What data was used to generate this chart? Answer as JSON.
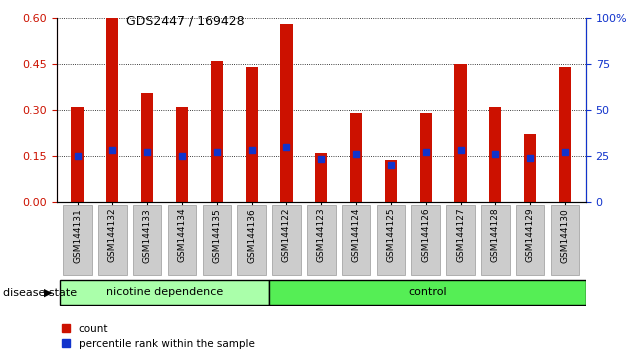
{
  "title": "GDS2447 / 169428",
  "samples": [
    "GSM144131",
    "GSM144132",
    "GSM144133",
    "GSM144134",
    "GSM144135",
    "GSM144136",
    "GSM144122",
    "GSM144123",
    "GSM144124",
    "GSM144125",
    "GSM144126",
    "GSM144127",
    "GSM144128",
    "GSM144129",
    "GSM144130"
  ],
  "count_values": [
    0.31,
    0.6,
    0.355,
    0.31,
    0.46,
    0.44,
    0.58,
    0.16,
    0.29,
    0.135,
    0.29,
    0.45,
    0.31,
    0.22,
    0.44
  ],
  "percentile_values": [
    25,
    28,
    27,
    25,
    27,
    28,
    30,
    23,
    26,
    20,
    27,
    28,
    26,
    24,
    27
  ],
  "bar_color": "#cc1100",
  "marker_color": "#1133cc",
  "nicotine_bg": "#aaffaa",
  "control_bg": "#55ee55",
  "cell_bg": "#cccccc",
  "cell_edge": "#999999",
  "ylim_left": [
    0,
    0.6
  ],
  "ylim_right": [
    0,
    100
  ],
  "yticks_left": [
    0,
    0.15,
    0.3,
    0.45,
    0.6
  ],
  "yticks_right": [
    0,
    25,
    50,
    75,
    100
  ],
  "bar_width": 0.35,
  "left_axis_color": "#cc1100",
  "right_axis_color": "#1133cc"
}
